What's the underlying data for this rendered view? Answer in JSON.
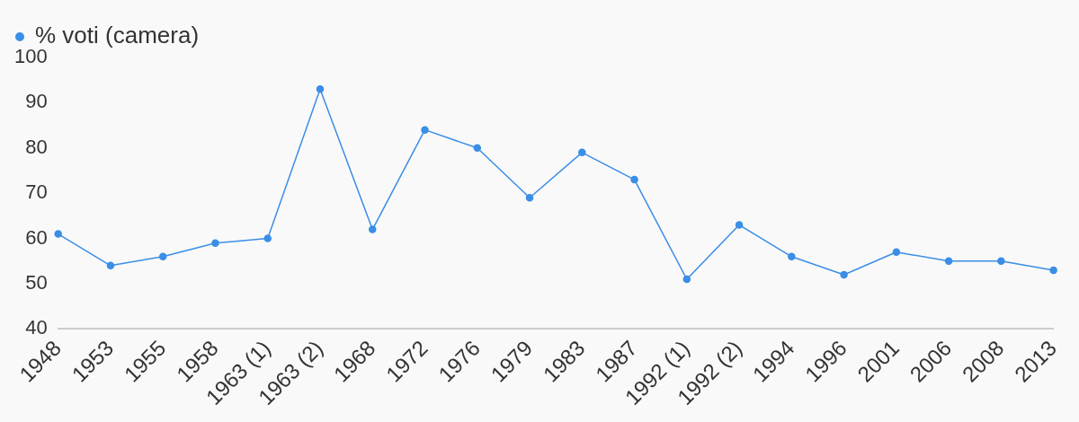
{
  "chart_data": {
    "type": "line",
    "categories": [
      "1948",
      "1953",
      "1955",
      "1958",
      "1963 (1)",
      "1963 (2)",
      "1968",
      "1972",
      "1976",
      "1979",
      "1983",
      "1987",
      "1992 (1)",
      "1992 (2)",
      "1994",
      "1996",
      "2001",
      "2006",
      "2008",
      "2013"
    ],
    "series": [
      {
        "name": "% voti (camera)",
        "color": "#3a8ee6",
        "values": [
          61,
          54,
          56,
          59,
          60,
          93,
          62,
          84,
          80,
          69,
          79,
          73,
          51,
          63,
          56,
          52,
          57,
          55,
          55,
          53
        ]
      }
    ],
    "ylim": [
      40,
      100
    ],
    "yticks": [
      40,
      50,
      60,
      70,
      80,
      90,
      100
    ],
    "grid": false,
    "legend": "top left",
    "marker": "circle",
    "line_style": "solid"
  }
}
